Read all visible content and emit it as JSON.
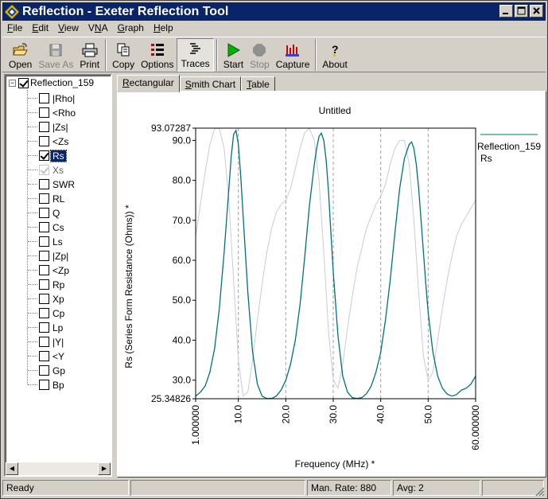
{
  "window": {
    "title": "Reflection - Exeter Reflection Tool"
  },
  "menu": [
    {
      "label": "File",
      "u": "F",
      "rest": "ile"
    },
    {
      "label": "Edit",
      "u": "E",
      "rest": "dit"
    },
    {
      "label": "View",
      "u": "V",
      "rest": "iew"
    },
    {
      "label": "VNA",
      "u": "N",
      "pre": "V",
      "rest": "A"
    },
    {
      "label": "Graph",
      "u": "G",
      "rest": "raph"
    },
    {
      "label": "Help",
      "u": "H",
      "rest": "elp"
    }
  ],
  "toolbar": {
    "open": "Open",
    "save_as": "Save As",
    "print": "Print",
    "copy": "Copy",
    "options": "Options",
    "traces": "Traces",
    "start": "Start",
    "stop": "Stop",
    "capture": "Capture",
    "about": "About"
  },
  "tree": {
    "root": "Reflection_159",
    "items": [
      {
        "label": "|Rho|",
        "checked": false
      },
      {
        "label": "<Rho",
        "checked": false
      },
      {
        "label": "|Zs|",
        "checked": false
      },
      {
        "label": "<Zs",
        "checked": false
      },
      {
        "label": "Rs",
        "checked": true,
        "selected": true
      },
      {
        "label": "Xs",
        "checked": true,
        "grey": true
      },
      {
        "label": "SWR",
        "checked": false
      },
      {
        "label": "RL",
        "checked": false
      },
      {
        "label": "Q",
        "checked": false
      },
      {
        "label": "Cs",
        "checked": false
      },
      {
        "label": "Ls",
        "checked": false
      },
      {
        "label": "|Zp|",
        "checked": false
      },
      {
        "label": "<Zp",
        "checked": false
      },
      {
        "label": "Rp",
        "checked": false
      },
      {
        "label": "Xp",
        "checked": false
      },
      {
        "label": "Cp",
        "checked": false
      },
      {
        "label": "Lp",
        "checked": false
      },
      {
        "label": "|Y|",
        "checked": false
      },
      {
        "label": "<Y",
        "checked": false
      },
      {
        "label": "Gp",
        "checked": false
      },
      {
        "label": "Bp",
        "checked": false
      }
    ]
  },
  "tabs": {
    "rectangular": {
      "u": "R",
      "rest": "ectangular"
    },
    "smith": {
      "u": "S",
      "rest": "mith Chart"
    },
    "table": {
      "u": "T",
      "rest": "able"
    }
  },
  "chart_data": {
    "type": "line",
    "title": "Untitled",
    "xlabel": "Frequency (MHz) *",
    "ylabel": "Rs (Series Form Resistance (Ohms)) *",
    "xlim": [
      1.0,
      60.0
    ],
    "ylim": [
      25.34826,
      93.07287
    ],
    "x_tick_labels": [
      "1.000000",
      "10.0",
      "20.0",
      "30.0",
      "40.0",
      "50.0",
      "60.000000"
    ],
    "x_ticks": [
      1.0,
      10.0,
      20.0,
      30.0,
      40.0,
      50.0,
      60.0
    ],
    "y_tick_labels": [
      "93.07287",
      "90.0",
      "80.0",
      "70.0",
      "60.0",
      "50.0",
      "40.0",
      "30.0",
      "25.34826"
    ],
    "y_ticks": [
      93.07287,
      90.0,
      80.0,
      70.0,
      60.0,
      50.0,
      40.0,
      30.0,
      25.34826
    ],
    "gridlines_x": [
      10.0,
      20.0,
      30.0,
      40.0,
      50.0
    ],
    "legend": {
      "series_name": "Reflection_159",
      "trace_name": "Rs",
      "placement": "top-right"
    },
    "series": [
      {
        "name": "Rs",
        "color": "#007080",
        "x": [
          1,
          2,
          3,
          4,
          5,
          6,
          7,
          8,
          8.5,
          9,
          9.5,
          10,
          10.5,
          11,
          12,
          13,
          14,
          15,
          16,
          17,
          18,
          19,
          20,
          21,
          22,
          23,
          24,
          25,
          26,
          26.5,
          27,
          27.5,
          28,
          28.5,
          29,
          29.5,
          30,
          31,
          32,
          33,
          34,
          35,
          36,
          37,
          38,
          39,
          40,
          41,
          42,
          43,
          44,
          45,
          46,
          46.5,
          47,
          47.5,
          48,
          48.5,
          49,
          49.5,
          50,
          51,
          52,
          53,
          54,
          55,
          56,
          57,
          58,
          59,
          60
        ],
        "y": [
          26,
          27,
          28.5,
          32,
          38,
          48,
          62,
          78,
          86,
          91.5,
          92.5,
          89,
          81,
          71,
          52,
          37,
          29,
          26,
          25.4,
          25.4,
          26,
          27.5,
          30,
          34,
          40,
          49,
          61,
          74,
          84,
          88,
          91,
          91.8,
          90,
          85,
          77,
          67,
          57,
          41,
          31,
          27,
          25.6,
          25.4,
          25.6,
          26.6,
          28.5,
          32,
          37,
          45,
          55,
          67,
          78,
          85.5,
          89,
          89.6,
          88,
          84,
          78,
          70,
          62,
          54,
          47,
          37,
          31,
          28,
          26.5,
          26,
          26.4,
          27.5,
          28,
          29,
          31
        ]
      },
      {
        "name": "Xs",
        "color": "#c8c8e6",
        "x": [
          1,
          2,
          3,
          4,
          5,
          6,
          7,
          8,
          9,
          10,
          11,
          12,
          13,
          14,
          15,
          16,
          17,
          18,
          19,
          20,
          21,
          22,
          23,
          24,
          25,
          26,
          27,
          28,
          29,
          30,
          31,
          32,
          33,
          34,
          35,
          36,
          37,
          38,
          39,
          40,
          41,
          42,
          43,
          44,
          45,
          46,
          47,
          48,
          49,
          50,
          51,
          52,
          53,
          54,
          55,
          56,
          57,
          58,
          59,
          60
        ],
        "y": [
          66,
          74,
          82,
          89,
          93,
          93,
          88,
          75,
          55,
          35,
          26,
          27,
          35,
          45,
          54,
          62,
          68,
          72,
          74,
          75,
          78,
          83,
          88,
          92,
          93,
          90,
          80,
          62,
          42,
          30,
          28,
          34,
          43,
          51,
          58,
          63,
          68,
          71,
          74,
          76,
          79,
          84,
          88,
          90,
          90,
          84,
          70,
          52,
          36,
          30,
          32,
          40,
          48,
          55,
          61,
          66,
          69,
          71,
          73,
          75
        ]
      }
    ]
  },
  "status": {
    "ready": "Ready",
    "rate": "Man. Rate: 880",
    "avg": "Avg: 2"
  }
}
